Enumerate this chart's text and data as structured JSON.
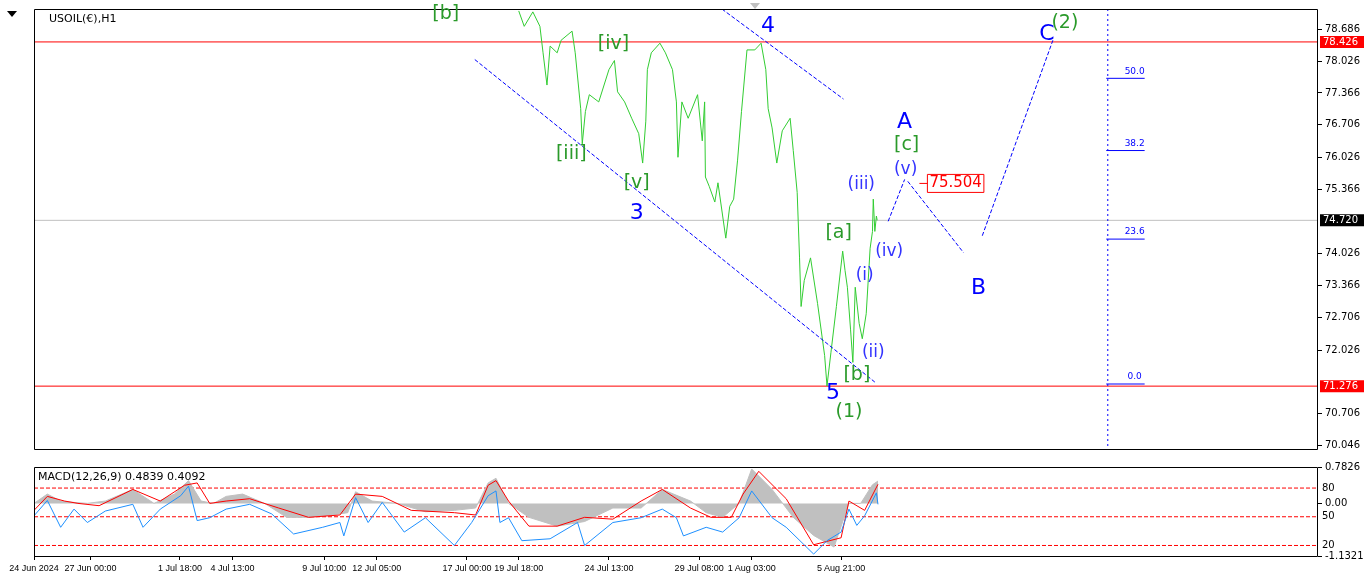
{
  "chart_data": [
    {
      "type": "line",
      "title": "USOIL(€),H1",
      "xlim": [
        "2024-06-24T00:00",
        "2024-08-31T05:00"
      ],
      "ylim": [
        69.97,
        79.11
      ],
      "yticks": [
        78.686,
        78.026,
        77.366,
        76.706,
        76.026,
        75.366,
        74.026,
        73.366,
        72.706,
        72.026,
        70.706,
        70.046
      ],
      "tick_labels": "y",
      "marker": "none",
      "series": [
        {
          "x": [
            "2024-07-19T18:00",
            "2024-07-20T01:00",
            "2024-07-20T12:00",
            "2024-07-20T21:00",
            "2024-07-21T01:00",
            "2024-07-21T06:00",
            "2024-07-21T10:00",
            "2024-07-21T19:00",
            "2024-07-22T00:00",
            "2024-07-22T14:00",
            "2024-07-22T18:00",
            "2024-07-23T01:00",
            "2024-07-23T03:00",
            "2024-07-23T07:00",
            "2024-07-23T12:00",
            "2024-07-24T00:00",
            "2024-07-24T13:00",
            "2024-07-24T20:00",
            "2024-07-25T00:00",
            "2024-07-25T09:00",
            "2024-07-25T18:00",
            "2024-07-26T03:00",
            "2024-07-26T08:00",
            "2024-07-26T12:00",
            "2024-07-26T14:00",
            "2024-07-26T19:00",
            "2024-07-27T06:00",
            "2024-07-27T13:00",
            "2024-07-27T22:00",
            "2024-07-28T03:00",
            "2024-07-28T05:00",
            "2024-07-28T10:00",
            "2024-07-28T18:00",
            "2024-07-29T06:00",
            "2024-07-29T12:00",
            "2024-07-29T15:00",
            "2024-07-29T16:00",
            "2024-07-29T21:00",
            "2024-07-30T04:00",
            "2024-07-30T08:00",
            "2024-07-30T14:00",
            "2024-07-30T18:00",
            "2024-07-30T23:00",
            "2024-07-31T04:00",
            "2024-07-31T09:00",
            "2024-07-31T14:00",
            "2024-07-31T21:00",
            "2024-08-01T07:00",
            "2024-08-01T15:00",
            "2024-08-01T21:00",
            "2024-08-02T00:00",
            "2024-08-02T05:00",
            "2024-08-02T11:00",
            "2024-08-02T18:00",
            "2024-08-03T04:00",
            "2024-08-03T08:00",
            "2024-08-03T13:00",
            "2024-08-03T16:00",
            "2024-08-03T18:00",
            "2024-08-03T22:00",
            "2024-08-04T06:00",
            "2024-08-04T15:00",
            "2024-08-05T00:00",
            "2024-08-05T03:00",
            "2024-08-05T08:00",
            "2024-08-05T15:00",
            "2024-08-05T23:00",
            "2024-08-06T02:00",
            "2024-08-06T05:00",
            "2024-08-06T09:00",
            "2024-08-06T12:00",
            "2024-08-06T15:00",
            "2024-08-06T20:00",
            "2024-08-07T00:00",
            "2024-08-07T05:00",
            "2024-08-07T10:00",
            "2024-08-07T13:00",
            "2024-08-07T14:00",
            "2024-08-07T16:00",
            "2024-08-07T18:00",
            "2024-08-07T19:00"
          ],
          "values": [
            79.07,
            78.75,
            79.05,
            78.75,
            78.2,
            77.53,
            78.34,
            78.2,
            78.46,
            78.65,
            78.2,
            77.04,
            76.31,
            76.98,
            77.33,
            77.18,
            77.85,
            78.04,
            77.39,
            77.18,
            76.84,
            76.52,
            75.91,
            76.78,
            77.85,
            78.2,
            78.4,
            78.2,
            77.85,
            77.18,
            76.03,
            77.18,
            76.84,
            77.33,
            76.37,
            77.18,
            75.62,
            75.42,
            75.1,
            75.5,
            74.81,
            74.35,
            75.01,
            75.16,
            75.97,
            76.98,
            78.26,
            78.26,
            78.4,
            77.85,
            77.04,
            76.64,
            75.91,
            76.58,
            76.84,
            76.17,
            75.3,
            73.94,
            72.93,
            73.47,
            73.94,
            72.99,
            71.91,
            71.28,
            71.97,
            72.93,
            74.08,
            73.68,
            73.33,
            72.46,
            71.77,
            73.33,
            72.58,
            72.26,
            72.78,
            74.14,
            74.49,
            75.16,
            74.49,
            74.81,
            74.72
          ],
          "color": "#32cd32"
        },
        {
          "color": "#0000ff",
          "line_style": "dashed",
          "x": [
            "2024-07-17T10:00",
            "2024-08-07T16:00"
          ],
          "values": [
            78.06,
            71.36
          ]
        },
        {
          "color": "#0000ff",
          "line_style": "dashed",
          "x": [
            "2024-07-30T13:00",
            "2024-08-06T00:00"
          ],
          "values": [
            79.11,
            77.24
          ]
        },
        {
          "color": "#0000ff",
          "line_style": "dashed",
          "x": [
            "2024-08-08T09:00",
            "2024-08-09T06:00"
          ],
          "values": [
            74.7,
            75.57
          ]
        },
        {
          "color": "#0000ff",
          "line_style": "dashed",
          "x": [
            "2024-08-09T10:00",
            "2024-08-12T09:00"
          ],
          "values": [
            75.53,
            74.05
          ]
        },
        {
          "color": "#0000ff",
          "line_style": "dashed",
          "x": [
            "2024-08-13T09:00",
            "2024-08-17T03:00"
          ],
          "values": [
            74.4,
            78.46
          ]
        },
        {
          "color": "#0000ff",
          "line_style": "solid",
          "x": [
            "2024-08-19T23:00",
            "2024-08-22T00:00"
          ],
          "values": [
            77.67,
            77.67
          ]
        },
        {
          "color": "#0000ff",
          "line_style": "solid",
          "x": [
            "2024-08-19T23:00",
            "2024-08-22T00:00"
          ],
          "values": [
            76.17,
            76.17
          ]
        },
        {
          "color": "#0000ff",
          "line_style": "solid",
          "x": [
            "2024-08-19T23:00",
            "2024-08-22T00:00"
          ],
          "values": [
            74.33,
            74.33
          ]
        },
        {
          "color": "#0000ff",
          "line_style": "solid",
          "x": [
            "2024-08-19T23:00",
            "2024-08-22T00:00"
          ],
          "values": [
            71.32,
            71.32
          ]
        }
      ],
      "ref_lines": [
        {
          "axis": "y",
          "value": 78.426,
          "label": "78.426",
          "color": "#ff0000",
          "line_style": "solid"
        },
        {
          "axis": "y",
          "value": 71.276,
          "label": "71.276",
          "color": "#ff0000",
          "line_style": "solid"
        },
        {
          "axis": "y",
          "value": 74.72,
          "label": "74.720",
          "color": "#c0c0c0",
          "line_style": "solid"
        },
        {
          "axis": "x",
          "value": "2024-08-20T01:00",
          "color": "#0000ff",
          "line_style": "dotted"
        }
      ],
      "annotations": [
        "[b]",
        {
          "text": "[iv]",
          "x": "2024-07-24T20:00",
          "y": 78.04
        },
        {
          "text": "[iii]",
          "x": "2024-07-23T03:00",
          "y": 76.31
        },
        {
          "text": "[v]",
          "x": "2024-07-26T08:00",
          "y": 75.91
        },
        "3",
        {
          "text": "4",
          "x": "2024-08-01T15:00",
          "y": 78.4
        },
        {
          "text": "[a]",
          "x": "2024-08-05T23:00",
          "y": 74.08
        },
        {
          "text": "(i)",
          "x": "2024-08-05T23:00",
          "y": 74.08
        },
        {
          "text": "(ii)",
          "x": "2024-08-07T00:00",
          "y": 72.26
        },
        {
          "text": "[b]",
          "x": "2024-08-06T12:00",
          "y": 71.77
        },
        {
          "text": "5",
          "x": "2024-08-05T03:00",
          "y": 71.28
        },
        {
          "text": "(1)",
          "x": "2024-08-05T03:00",
          "y": 71.28
        },
        {
          "text": "(iii)",
          "x": "2024-08-07T14:00",
          "y": 75.16
        },
        {
          "text": "(iv)",
          "x": "2024-08-07T19:00",
          "y": 74.72
        },
        {
          "text": "(v)",
          "x": "2024-08-09T06:00",
          "y": 75.57
        },
        {
          "text": "[c]",
          "x": "2024-08-09T06:00",
          "y": 75.57
        },
        {
          "text": "A",
          "x": "2024-08-09T06:00",
          "y": 75.57
        },
        "75.504",
        {
          "text": "B",
          "x": "2024-08-12T09:00",
          "y": 74.05
        },
        {
          "text": "C",
          "x": "2024-08-17T03:00",
          "y": 78.46
        },
        {
          "text": "(2)",
          "x": "2024-08-17T03:00",
          "y": 78.46
        },
        {
          "text": "50.0",
          "x": "2024-08-22T00:00",
          "y": 77.67
        },
        {
          "text": "38.2",
          "x": "2024-08-22T00:00",
          "y": 76.17
        },
        {
          "text": "23.6",
          "x": "2024-08-22T00:00",
          "y": 74.33
        },
        {
          "text": "0.0",
          "x": "2024-08-22T00:00",
          "y": 71.32
        }
      ]
    },
    {
      "type": "line",
      "title": "MACD(12,26,9) 0.4839 0.4092",
      "xlim": [
        "2024-06-24T00:00",
        "2024-08-31T05:00"
      ],
      "ylim": [
        -1.1321,
        0.7826
      ],
      "xticks": [
        {
          "value": "2024-06-24T00:00",
          "label": "24 Jun 2024"
        },
        {
          "value": "2024-06-27T00:00",
          "label": "27 Jun 00:00"
        },
        {
          "value": "2024-07-01T18:00",
          "label": "1 Jul 18:00"
        },
        {
          "value": "2024-07-04T13:00",
          "label": "4 Jul 13:00"
        },
        {
          "value": "2024-07-09T10:00",
          "label": "9 Jul 10:00"
        },
        {
          "value": "2024-07-12T05:00",
          "label": "12 Jul 05:00"
        },
        {
          "value": "2024-07-17T00:00",
          "label": "17 Jul 00:00"
        },
        {
          "value": "2024-07-19T18:00",
          "label": "19 Jul 18:00"
        },
        {
          "value": "2024-07-24T13:00",
          "label": "24 Jul 13:00"
        },
        {
          "value": "2024-07-29T08:00",
          "label": "29 Jul 08:00"
        },
        {
          "value": "2024-08-01T03:00",
          "label": "1 Aug 03:00"
        },
        {
          "value": "2024-08-05T21:00",
          "label": "5 Aug 21:00"
        }
      ],
      "yticks": [
        0.7826,
        {
          "value": 0,
          "label": "0.00"
        },
        -1.1321
      ],
      "y2lim": [
        9,
        102
      ],
      "y2ticks": [
        20,
        50,
        80
      ],
      "marker": "none",
      "series": [
        {
          "type": "area",
          "color": "#c0c0c0",
          "x": [
            "2024-06-24T00:00",
            "2024-06-24T17:00",
            "2024-06-25T10:00",
            "2024-06-26T03:00",
            "2024-06-26T20:00",
            "2024-06-27T19:00",
            "2024-06-29T06:00",
            "2024-06-30T09:00",
            "2024-07-01T11:00",
            "2024-07-02T05:00",
            "2024-07-02T21:00",
            "2024-07-03T13:00",
            "2024-07-04T05:00",
            "2024-07-05T02:00",
            "2024-07-06T06:00",
            "2024-07-07T10:00",
            "2024-07-08T14:00",
            "2024-07-09T19:00",
            "2024-07-10T16:00",
            "2024-07-11T02:00",
            "2024-07-11T23:00",
            "2024-07-13T07:00",
            "2024-07-14T19:00",
            "2024-07-16T08:00",
            "2024-07-17T11:00",
            "2024-07-18T03:00",
            "2024-07-18T13:00",
            "2024-07-19T05:00",
            "2024-07-20T07:00",
            "2024-07-21T19:00",
            "2024-07-23T06:00",
            "2024-07-24T18:00",
            "2024-07-26T06:00",
            "2024-07-27T09:00",
            "2024-07-28T21:00",
            "2024-07-29T17:00",
            "2024-07-30T14:00",
            "2024-07-31T11:00",
            "2024-08-01T03:00",
            "2024-08-02T05:00",
            "2024-08-03T08:00",
            "2024-08-04T10:00",
            "2024-08-05T12:00",
            "2024-08-06T07:00",
            "2024-08-06T22:00",
            "2024-08-07T13:00",
            "2024-08-07T20:00"
          ],
          "values": [
            0,
            0.2,
            0.05,
            0.02,
            0,
            0.05,
            0.3,
            0,
            0.2,
            0.49,
            0.05,
            0,
            0.15,
            0.2,
            0,
            -0.3,
            -0.3,
            -0.25,
            -0.2,
            0.25,
            0.05,
            0,
            -0.18,
            -0.15,
            -0.1,
            0.44,
            0.54,
            0,
            -0.3,
            -0.49,
            -0.39,
            -0.1,
            -0.1,
            0.3,
            0.05,
            -0.2,
            -0.3,
            0,
            0.74,
            0.3,
            -0.3,
            -0.69,
            -0.94,
            0,
            0,
            0.4,
            0.48
          ]
        },
        {
          "color": "#ff0000",
          "line_style": "solid",
          "x": [
            "2024-06-24T00:00",
            "2024-06-24T17:00",
            "2024-06-25T15:00",
            "2024-06-26T08:00",
            "2024-06-27T11:00",
            "2024-06-29T06:00",
            "2024-06-30T17:00",
            "2024-07-02T00:00",
            "2024-07-02T16:00",
            "2024-07-03T08:00",
            "2024-07-04T05:00",
            "2024-07-05T11:00",
            "2024-07-07T00:00",
            "2024-07-08T14:00",
            "2024-07-10T06:00",
            "2024-07-11T02:00",
            "2024-07-12T12:00",
            "2024-07-14T01:00",
            "2024-07-16T08:00",
            "2024-07-17T11:00",
            "2024-07-18T03:00",
            "2024-07-18T13:00",
            "2024-07-19T05:00",
            "2024-07-20T07:00",
            "2024-07-21T19:00",
            "2024-07-23T06:00",
            "2024-07-24T18:00",
            "2024-07-26T06:00",
            "2024-07-27T09:00",
            "2024-07-28T21:00",
            "2024-07-29T23:00",
            "2024-07-31T01:00",
            "2024-07-31T16:00",
            "2024-08-01T12:00",
            "2024-08-02T23:00",
            "2024-08-04T10:00",
            "2024-08-05T21:00",
            "2024-08-06T07:00",
            "2024-08-07T03:00",
            "2024-08-07T20:00"
          ],
          "values": [
            -0.15,
            0.15,
            0.05,
            0,
            -0.05,
            0.3,
            0.05,
            0.39,
            0.44,
            0,
            0.05,
            0.1,
            -0.1,
            -0.3,
            -0.25,
            0.2,
            0.15,
            -0.15,
            -0.2,
            -0.25,
            0.39,
            0.49,
            0.05,
            -0.49,
            -0.49,
            -0.3,
            -0.34,
            0.05,
            0.3,
            -0.1,
            -0.3,
            -0.3,
            0.2,
            0.69,
            0.1,
            -0.89,
            -0.74,
            0.05,
            -0.15,
            0.41
          ]
        },
        {
          "color": "#1e90ff",
          "line_style": "solid",
          "axis": "y2",
          "x": [
            "2024-06-24T00:00",
            "2024-06-24T17:00",
            "2024-06-25T10:00",
            "2024-06-26T03:00",
            "2024-06-26T20:00",
            "2024-06-27T19:00",
            "2024-06-29T06:00",
            "2024-06-29T19:00",
            "2024-06-30T17:00",
            "2024-07-01T19:00",
            "2024-07-02T05:00",
            "2024-07-02T16:00",
            "2024-07-03T08:00",
            "2024-07-04T05:00",
            "2024-07-05T11:00",
            "2024-07-06T15:00",
            "2024-07-07T19:00",
            "2024-07-09T08:00",
            "2024-07-10T06:00",
            "2024-07-10T11:00",
            "2024-07-11T02:00",
            "2024-07-11T18:00",
            "2024-07-12T12:00",
            "2024-07-13T16:00",
            "2024-07-14T19:00",
            "2024-07-16T08:00",
            "2024-07-17T06:00",
            "2024-07-18T03:00",
            "2024-07-18T13:00",
            "2024-07-18T18:00",
            "2024-07-19T05:00",
            "2024-07-19T22:00",
            "2024-07-21T10:00",
            "2024-07-22T21:00",
            "2024-07-23T06:00",
            "2024-07-24T18:00",
            "2024-07-26T06:00",
            "2024-07-27T09:00",
            "2024-07-28T03:00",
            "2024-07-28T12:00",
            "2024-07-29T17:00",
            "2024-07-30T14:00",
            "2024-07-31T11:00",
            "2024-08-01T03:00",
            "2024-08-02T05:00",
            "2024-08-02T23:00",
            "2024-08-04T10:00",
            "2024-08-05T03:00",
            "2024-08-05T21:00",
            "2024-08-06T07:00",
            "2024-08-06T17:00",
            "2024-08-07T03:00",
            "2024-08-07T18:00",
            "2024-08-07T20:00"
          ],
          "values": [
            51,
            67,
            39,
            58,
            44,
            56,
            63,
            39,
            58,
            72,
            82,
            46,
            49,
            58,
            63,
            53,
            32,
            39,
            44,
            30,
            70,
            44,
            65,
            34,
            49,
            20,
            44,
            72,
            77,
            44,
            49,
            25,
            27,
            44,
            20,
            44,
            49,
            58,
            49,
            30,
            39,
            34,
            49,
            77,
            49,
            39,
            11,
            25,
            34,
            58,
            41,
            51,
            75,
            63
          ]
        }
      ],
      "ref_lines": [
        {
          "axis": "y2",
          "value": 80,
          "color": "#ff0000",
          "line_style": "dashed"
        },
        {
          "axis": "y2",
          "value": 50,
          "color": "#ff0000",
          "line_style": "dashed"
        },
        {
          "axis": "y2",
          "value": 20,
          "color": "#ff0000",
          "line_style": "dashed"
        }
      ]
    }
  ]
}
